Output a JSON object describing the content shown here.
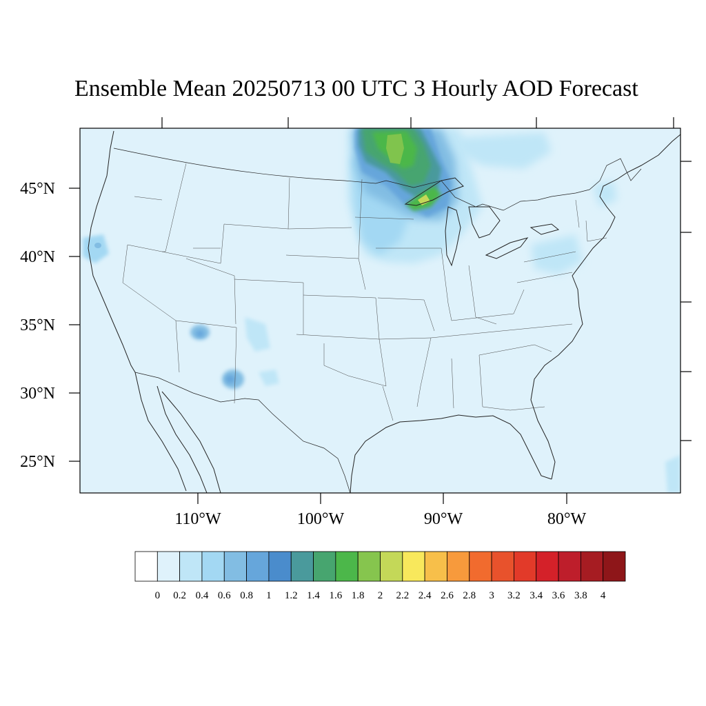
{
  "title": "Ensemble Mean 20250713 00 UTC 3 Hourly AOD Forecast",
  "map": {
    "projection": "lambert-conic",
    "region": "Contiguous United States",
    "lat_labels": [
      "45°N",
      "40°N",
      "35°N",
      "30°N",
      "25°N"
    ],
    "lon_labels": [
      "110°W",
      "100°W",
      "90°W",
      "80°W"
    ],
    "background_aod_level": 0.2,
    "plumes": [
      {
        "region": "northern Minnesota / Lake Superior",
        "aod_level": 1.8
      },
      {
        "region": "Lake Superior north shore",
        "aod_level": 2.2
      },
      {
        "region": "eastern North Dakota / South Dakota",
        "aod_level": 0.8
      },
      {
        "region": "eastern Arizona",
        "aod_level": 1.0
      },
      {
        "region": "southern New Mexico",
        "aod_level": 1.0
      },
      {
        "region": "northern California coast",
        "aod_level": 0.6
      },
      {
        "region": "Pennsylvania / New York",
        "aod_level": 0.4
      },
      {
        "region": "southern Quebec",
        "aod_level": 0.4
      }
    ]
  },
  "colorbar": {
    "labels": [
      "0",
      "0.2",
      "0.4",
      "0.6",
      "0.8",
      "1",
      "1.2",
      "1.4",
      "1.6",
      "1.8",
      "2",
      "2.2",
      "2.4",
      "2.6",
      "2.8",
      "3",
      "3.2",
      "3.4",
      "3.6",
      "3.8",
      "4"
    ],
    "colors": [
      "#ffffff",
      "#dff2fb",
      "#bfe6f7",
      "#a3d8f3",
      "#82bde3",
      "#66a6db",
      "#4a8ccc",
      "#4a9a9c",
      "#47a56f",
      "#4cb74a",
      "#86c54e",
      "#c4d858",
      "#f8e85c",
      "#f7bf4a",
      "#f79a3c",
      "#f16b2e",
      "#e8522c",
      "#e23a29",
      "#d42129",
      "#be1e2b",
      "#a61c22",
      "#8e1619"
    ]
  }
}
